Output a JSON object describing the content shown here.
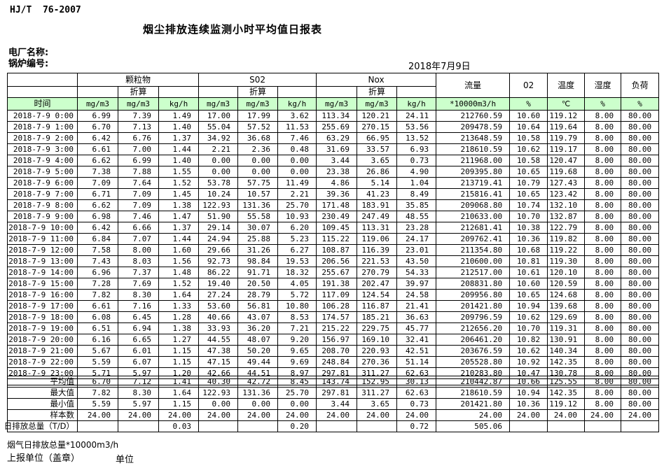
{
  "page": {
    "doc_code": "HJ/T  76-2007",
    "title": "烟尘排放连续监测小时平均值日报表",
    "plant_label": "电厂名称:",
    "boiler_label": "锅炉编号:",
    "date": "2018年7月9日",
    "footer_flow_total_label": "烟气日排放总量*10000m3/h",
    "footer_report_unit_label": "上报单位（盖章）",
    "footer_unit_label": "单位"
  },
  "table": {
    "colors": {
      "header_green": "#ccffcc"
    },
    "time_label": "时间",
    "converted_label": "折算",
    "groups": {
      "pm": "颗粒物",
      "so2": "S02",
      "nox": "Nox",
      "flow": "流量",
      "o2": "02",
      "temp": "温度",
      "humidity": "湿度",
      "load": "负荷"
    },
    "units": [
      "mg/m3",
      "mg/m3",
      "kg/h",
      "mg/m3",
      "mg/m3",
      "kg/h",
      "mg/m3",
      "mg/m3",
      "kg/h",
      "*10000m3/h",
      "%",
      "℃",
      "%",
      "%"
    ],
    "rows": [
      {
        "time": "2018-7-9 0:00",
        "values": [
          "6.99",
          "7.39",
          "1.49",
          "17.00",
          "17.99",
          "3.62",
          "113.34",
          "120.21",
          "24.11",
          "212760.59",
          "10.60",
          "119.12",
          "8.00",
          "80.00"
        ]
      },
      {
        "time": "2018-7-9 1:00",
        "values": [
          "6.70",
          "7.13",
          "1.40",
          "55.04",
          "57.52",
          "11.53",
          "255.69",
          "270.15",
          "53.56",
          "209478.59",
          "10.64",
          "119.64",
          "8.00",
          "80.00"
        ]
      },
      {
        "time": "2018-7-9 2:00",
        "values": [
          "6.42",
          "6.76",
          "1.37",
          "34.92",
          "36.68",
          "7.46",
          "63.29",
          "66.95",
          "13.52",
          "213648.59",
          "10.58",
          "119.79",
          "8.00",
          "80.00"
        ]
      },
      {
        "time": "2018-7-9 3:00",
        "values": [
          "6.61",
          "7.00",
          "1.44",
          "2.21",
          "2.36",
          "0.48",
          "31.69",
          "33.57",
          "6.93",
          "218610.59",
          "10.62",
          "119.17",
          "8.00",
          "80.00"
        ]
      },
      {
        "time": "2018-7-9 4:00",
        "values": [
          "6.62",
          "6.99",
          "1.40",
          "0.00",
          "0.00",
          "0.00",
          "3.44",
          "3.65",
          "0.73",
          "211968.00",
          "10.58",
          "120.47",
          "8.00",
          "80.00"
        ]
      },
      {
        "time": "2018-7-9 5:00",
        "values": [
          "7.38",
          "7.88",
          "1.55",
          "0.00",
          "0.00",
          "0.00",
          "23.38",
          "26.86",
          "4.90",
          "209395.80",
          "10.65",
          "119.68",
          "8.00",
          "80.00"
        ]
      },
      {
        "time": "2018-7-9 6:00",
        "values": [
          "7.09",
          "7.64",
          "1.52",
          "53.78",
          "57.75",
          "11.49",
          "4.86",
          "5.14",
          "1.04",
          "213719.41",
          "10.79",
          "127.43",
          "8.00",
          "80.00"
        ]
      },
      {
        "time": "2018-7-9 7:00",
        "values": [
          "6.71",
          "7.09",
          "1.45",
          "10.24",
          "10.57",
          "2.21",
          "39.36",
          "41.23",
          "8.49",
          "215816.41",
          "10.65",
          "123.42",
          "8.00",
          "80.00"
        ]
      },
      {
        "time": "2018-7-9 8:00",
        "values": [
          "6.62",
          "7.09",
          "1.38",
          "122.93",
          "131.36",
          "25.70",
          "171.48",
          "183.91",
          "35.85",
          "209068.80",
          "10.74",
          "132.10",
          "8.00",
          "80.00"
        ]
      },
      {
        "time": "2018-7-9 9:00",
        "values": [
          "6.98",
          "7.46",
          "1.47",
          "51.90",
          "55.58",
          "10.93",
          "230.49",
          "247.49",
          "48.55",
          "210633.00",
          "10.70",
          "132.87",
          "8.00",
          "80.00"
        ]
      },
      {
        "time": "2018-7-9 10:00",
        "values": [
          "6.42",
          "6.66",
          "1.37",
          "29.14",
          "30.07",
          "6.20",
          "109.45",
          "113.31",
          "23.28",
          "212681.41",
          "10.38",
          "122.79",
          "8.00",
          "80.00"
        ]
      },
      {
        "time": "2018-7-9 11:00",
        "values": [
          "6.84",
          "7.07",
          "1.44",
          "24.94",
          "25.88",
          "5.23",
          "115.22",
          "119.06",
          "24.17",
          "209762.41",
          "10.36",
          "119.82",
          "8.00",
          "80.00"
        ]
      },
      {
        "time": "2018-7-9 12:00",
        "values": [
          "7.58",
          "8.00",
          "1.60",
          "29.66",
          "31.26",
          "6.27",
          "108.87",
          "116.39",
          "23.01",
          "211354.80",
          "10.68",
          "119.22",
          "8.00",
          "80.00"
        ]
      },
      {
        "time": "2018-7-9 13:00",
        "values": [
          "7.43",
          "8.03",
          "1.56",
          "92.73",
          "98.84",
          "19.53",
          "206.56",
          "221.53",
          "43.50",
          "210600.00",
          "10.81",
          "119.30",
          "8.00",
          "80.00"
        ]
      },
      {
        "time": "2018-7-9 14:00",
        "values": [
          "6.96",
          "7.37",
          "1.48",
          "86.22",
          "91.71",
          "18.32",
          "255.67",
          "270.79",
          "54.33",
          "212517.00",
          "10.61",
          "120.10",
          "8.00",
          "80.00"
        ]
      },
      {
        "time": "2018-7-9 15:00",
        "values": [
          "7.28",
          "7.69",
          "1.52",
          "19.40",
          "20.50",
          "4.05",
          "191.38",
          "202.47",
          "39.97",
          "208831.80",
          "10.60",
          "120.59",
          "8.00",
          "80.00"
        ]
      },
      {
        "time": "2018-7-9 16:00",
        "values": [
          "7.82",
          "8.30",
          "1.64",
          "27.24",
          "28.79",
          "5.72",
          "117.09",
          "124.54",
          "24.58",
          "209956.80",
          "10.65",
          "124.68",
          "8.00",
          "80.00"
        ]
      },
      {
        "time": "2018-7-9 17:00",
        "values": [
          "6.61",
          "7.16",
          "1.33",
          "53.60",
          "56.81",
          "10.80",
          "106.28",
          "116.87",
          "21.41",
          "201421.80",
          "10.94",
          "139.68",
          "8.00",
          "80.00"
        ]
      },
      {
        "time": "2018-7-9 18:00",
        "values": [
          "6.08",
          "6.45",
          "1.28",
          "40.66",
          "43.07",
          "8.53",
          "174.57",
          "185.21",
          "36.63",
          "209796.59",
          "10.62",
          "129.69",
          "8.00",
          "80.00"
        ]
      },
      {
        "time": "2018-7-9 19:00",
        "values": [
          "6.51",
          "6.94",
          "1.38",
          "33.93",
          "36.20",
          "7.21",
          "215.22",
          "229.75",
          "45.77",
          "212656.20",
          "10.70",
          "119.31",
          "8.00",
          "80.00"
        ]
      },
      {
        "time": "2018-7-9 20:00",
        "values": [
          "6.16",
          "6.65",
          "1.27",
          "44.55",
          "48.07",
          "9.20",
          "156.97",
          "169.10",
          "32.41",
          "206461.20",
          "10.82",
          "130.91",
          "8.00",
          "80.00"
        ]
      },
      {
        "time": "2018-7-9 21:00",
        "values": [
          "5.67",
          "6.01",
          "1.15",
          "47.38",
          "50.20",
          "9.65",
          "208.70",
          "220.93",
          "42.51",
          "203676.59",
          "10.62",
          "140.34",
          "8.00",
          "80.00"
        ]
      },
      {
        "time": "2018-7-9 22:00",
        "values": [
          "5.59",
          "6.07",
          "1.15",
          "47.15",
          "49.44",
          "9.69",
          "248.84",
          "270.36",
          "51.14",
          "205528.80",
          "10.92",
          "142.35",
          "8.00",
          "80.00"
        ]
      },
      {
        "time": "2018-7-9 23:00",
        "values": [
          "5.71",
          "5.97",
          "1.20",
          "42.66",
          "44.51",
          "8.97",
          "297.81",
          "311.27",
          "62.63",
          "210283.80",
          "10.47",
          "130.78",
          "8.00",
          "80.00"
        ]
      }
    ],
    "summary": [
      {
        "label": "平均值",
        "values": [
          "6.70",
          "7.12",
          "1.41",
          "40.30",
          "42.72",
          "8.45",
          "143.74",
          "152.95",
          "30.13",
          "210442.87",
          "10.66",
          "125.55",
          "8.00",
          "80.00"
        ]
      },
      {
        "label": "最大值",
        "values": [
          "7.82",
          "8.30",
          "1.64",
          "122.93",
          "131.36",
          "25.70",
          "297.81",
          "311.27",
          "62.63",
          "218610.59",
          "10.94",
          "142.35",
          "8.00",
          "80.00"
        ]
      },
      {
        "label": "最小值",
        "values": [
          "5.59",
          "5.97",
          "1.15",
          "0.00",
          "0.00",
          "0.00",
          "3.44",
          "3.65",
          "0.73",
          "201421.80",
          "10.36",
          "119.12",
          "8.00",
          "80.00"
        ]
      },
      {
        "label": "样本数",
        "values": [
          "24.00",
          "24.00",
          "24.00",
          "24.00",
          "24.00",
          "24.00",
          "24.00",
          "24.00",
          "24.00",
          "24.00",
          "24.00",
          "24.00",
          "24.00",
          "24.00"
        ]
      },
      {
        "label": "日排放总量（T/D）",
        "values": [
          "",
          "",
          "0.03",
          "",
          "",
          "0.20",
          "",
          "",
          "0.72",
          "505.06",
          "",
          "",
          "",
          ""
        ]
      }
    ]
  }
}
